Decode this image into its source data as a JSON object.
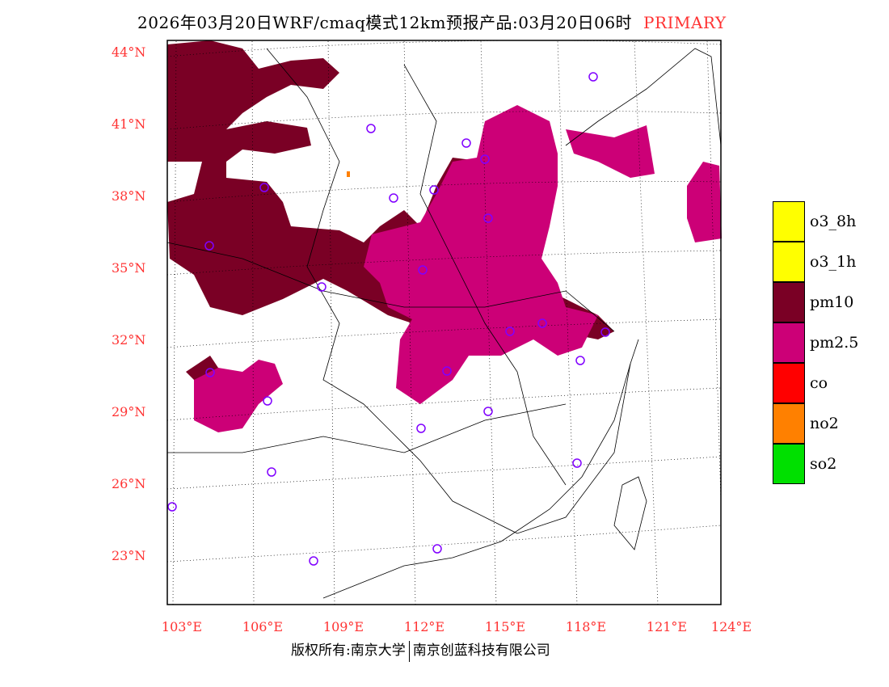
{
  "title": {
    "text": "2026年03月20日WRF/cmaq模式12km预报产品:03月20日06时",
    "mode": "PRIMARY"
  },
  "lat_labels": [
    "44°N",
    "41°N",
    "38°N",
    "35°N",
    "32°N",
    "29°N",
    "26°N",
    "23°N"
  ],
  "lon_labels": [
    "103°E",
    "106°E",
    "109°E",
    "112°E",
    "115°E",
    "118°E",
    "121°E",
    "124°E"
  ],
  "legend": [
    {
      "label": "o3_8h",
      "color": "#ffff00"
    },
    {
      "label": "o3_1h",
      "color": "#ffff00"
    },
    {
      "label": "pm10",
      "color": "#7a0025"
    },
    {
      "label": "pm2.5",
      "color": "#cc0077"
    },
    {
      "label": "co",
      "color": "#ff0000"
    },
    {
      "label": "no2",
      "color": "#ff8000"
    },
    {
      "label": "so2",
      "color": "#00e000"
    }
  ],
  "footer": {
    "left": "版权所有:南京大学",
    "right": "南京创蓝科技有限公司"
  }
}
